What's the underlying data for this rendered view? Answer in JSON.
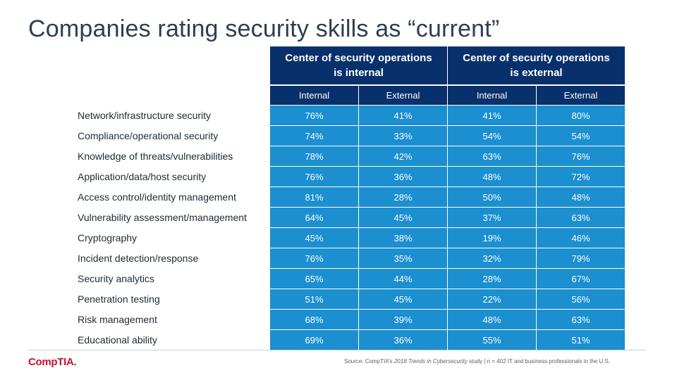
{
  "title": "Companies rating security skills as “current”",
  "logo": "CompTIA.",
  "source": {
    "prefix": "Source: CompTIA’s ",
    "study": "2018 Trends in Cybersecurity",
    "suffix": " study | n = 402 IT and business professionals in the U.S."
  },
  "colors": {
    "header": "#08306b",
    "cell": "#1b8fd0",
    "title": "#2d3e50",
    "logo": "#c8102e"
  },
  "chart_data": {
    "type": "table",
    "title": "Companies rating security skills as “current”",
    "column_groups": [
      {
        "name": "Center of security operations is internal",
        "columns": [
          "Internal",
          "External"
        ]
      },
      {
        "name": "Center of security operations is external",
        "columns": [
          "Internal",
          "External"
        ]
      }
    ],
    "rows": [
      {
        "label": "Network/infrastructure  security",
        "values": [
          "76%",
          "41%",
          "41%",
          "80%"
        ]
      },
      {
        "label": "Compliance/operational security",
        "values": [
          "74%",
          "33%",
          "54%",
          "54%"
        ]
      },
      {
        "label": "Knowledge of threats/vulnerabilities",
        "values": [
          "78%",
          "42%",
          "63%",
          "76%"
        ]
      },
      {
        "label": "Application/data/host security",
        "values": [
          "76%",
          "36%",
          "48%",
          "72%"
        ]
      },
      {
        "label": "Access control/identity management",
        "values": [
          "81%",
          "28%",
          "50%",
          "48%"
        ]
      },
      {
        "label": "Vulnerability assessment/management",
        "values": [
          "64%",
          "45%",
          "37%",
          "63%"
        ]
      },
      {
        "label": "Cryptography",
        "values": [
          "45%",
          "38%",
          "19%",
          "46%"
        ]
      },
      {
        "label": "Incident detection/response",
        "values": [
          "76%",
          "35%",
          "32%",
          "79%"
        ]
      },
      {
        "label": "Security analytics",
        "values": [
          "65%",
          "44%",
          "28%",
          "67%"
        ]
      },
      {
        "label": "Penetration testing",
        "values": [
          "51%",
          "45%",
          "22%",
          "56%"
        ]
      },
      {
        "label": "Risk management",
        "values": [
          "68%",
          "39%",
          "48%",
          "63%"
        ]
      },
      {
        "label": "Educational ability",
        "values": [
          "69%",
          "36%",
          "55%",
          "51%"
        ]
      }
    ]
  }
}
